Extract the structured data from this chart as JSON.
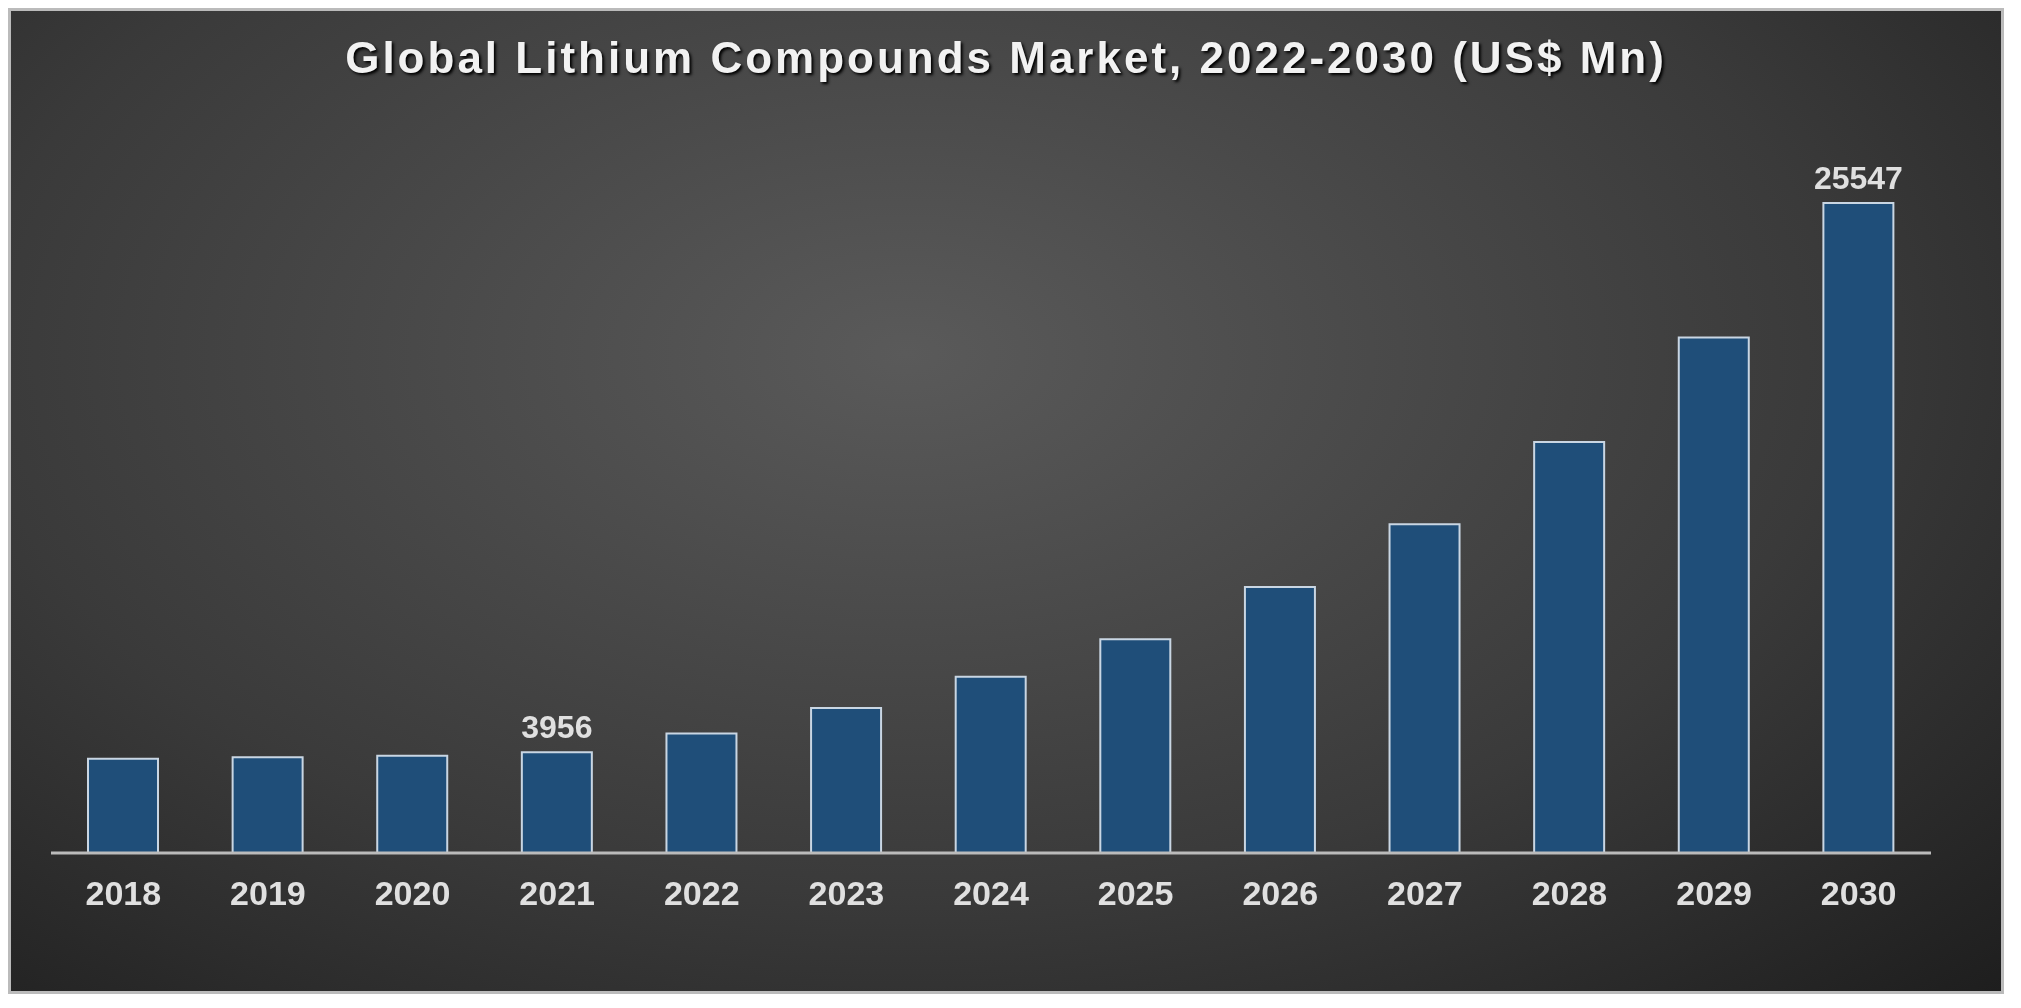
{
  "chart_data": {
    "type": "bar",
    "title": "Global Lithium Compounds Market, 2022-2030 (US$ Mn)",
    "categories": [
      "2018",
      "2019",
      "2020",
      "2021",
      "2022",
      "2023",
      "2024",
      "2025",
      "2026",
      "2027",
      "2028",
      "2029",
      "2030"
    ],
    "values": [
      3700,
      3760,
      3820,
      3956,
      4700,
      5700,
      6930,
      8400,
      10450,
      12920,
      16150,
      20260,
      25547
    ],
    "value_labels": [
      null,
      null,
      null,
      "3956",
      null,
      null,
      null,
      null,
      null,
      null,
      null,
      null,
      "25547"
    ],
    "color": "#1f4e79",
    "legend": false,
    "grid": false
  }
}
